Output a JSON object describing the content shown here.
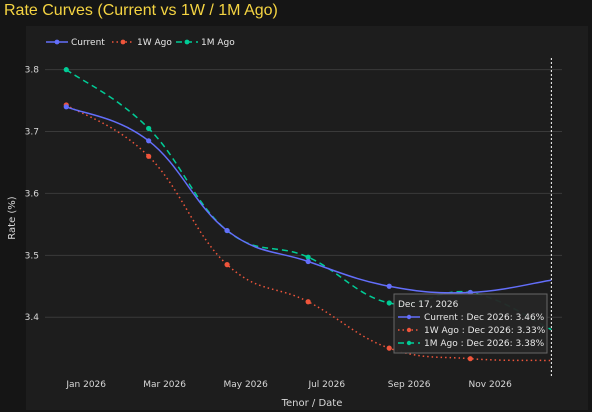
{
  "chart_data": {
    "type": "line",
    "title": "Rate Curves (Current vs 1W / 1M Ago)",
    "xlabel": "Tenor / Date",
    "ylabel": "Rate (%)",
    "x_tick_labels": [
      "Jan 2026",
      "Mar 2026",
      "May 2026",
      "Jul 2026",
      "Sep 2026",
      "Nov 2026"
    ],
    "x_tick_dates": [
      "2026-01-01",
      "2026-03-01",
      "2026-05-01",
      "2026-07-01",
      "2026-09-01",
      "2026-11-01"
    ],
    "xlim": [
      "2025-12-01",
      "2026-12-25"
    ],
    "y_ticks": [
      3.4,
      3.5,
      3.6,
      3.7,
      3.8
    ],
    "ylim": [
      3.305,
      3.835
    ],
    "grid": true,
    "legend_position": "top-left",
    "series": [
      {
        "name": "Current",
        "color": "#636efa",
        "dash": "solid",
        "x": [
          "2025-12-17",
          "2026-02-17",
          "2026-04-17",
          "2026-06-17",
          "2026-08-17",
          "2026-10-17",
          "2026-12-17"
        ],
        "y": [
          3.74,
          3.685,
          3.54,
          3.49,
          3.45,
          3.44,
          3.46
        ]
      },
      {
        "name": "1W Ago",
        "color": "#ef553b",
        "dash": "dot",
        "x": [
          "2025-12-17",
          "2026-02-17",
          "2026-04-17",
          "2026-06-17",
          "2026-08-17",
          "2026-10-17",
          "2026-12-17"
        ],
        "y": [
          3.743,
          3.66,
          3.485,
          3.425,
          3.35,
          3.333,
          3.33
        ]
      },
      {
        "name": "1M Ago",
        "color": "#00cc96",
        "dash": "dash",
        "x": [
          "2025-12-17",
          "2026-02-17",
          "2026-04-17",
          "2026-06-17",
          "2026-08-17",
          "2026-10-17",
          "2026-12-17"
        ],
        "y": [
          3.8,
          3.705,
          3.54,
          3.497,
          3.423,
          3.44,
          3.38
        ]
      }
    ],
    "hover": {
      "date_label": "Dec 17, 2026",
      "x": "2026-12-17",
      "lines": [
        "Current : Dec 2026: 3.46%",
        "1W Ago : Dec 2026: 3.33%",
        "1M Ago : Dec 2026: 3.38%"
      ]
    }
  }
}
